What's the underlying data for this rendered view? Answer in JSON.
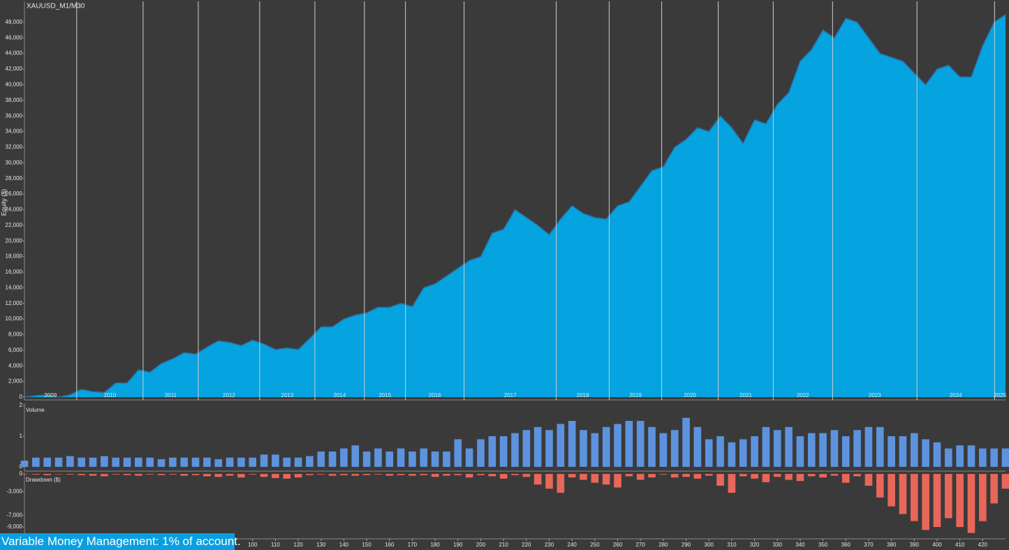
{
  "chart_data": [
    {
      "type": "area",
      "title": "XAUUSD_M1/M30",
      "y_label": "Equity ($)",
      "color": "#05a3e0",
      "line_color": "#2b6d9c",
      "x": [
        0,
        5,
        10,
        15,
        20,
        25,
        30,
        35,
        40,
        45,
        50,
        55,
        60,
        65,
        70,
        75,
        80,
        85,
        90,
        95,
        100,
        105,
        110,
        115,
        120,
        125,
        130,
        135,
        140,
        145,
        150,
        155,
        160,
        165,
        170,
        175,
        180,
        185,
        190,
        195,
        200,
        205,
        210,
        215,
        220,
        225,
        230,
        235,
        240,
        245,
        250,
        255,
        260,
        265,
        270,
        275,
        280,
        285,
        290,
        295,
        300,
        305,
        310,
        315,
        320,
        325,
        330,
        335,
        340,
        345,
        350,
        355,
        360,
        365,
        370,
        375,
        380,
        385,
        390,
        395,
        400,
        405,
        410,
        415,
        420,
        425,
        430
      ],
      "values": [
        0,
        200,
        300,
        0,
        300,
        1000,
        700,
        600,
        1800,
        1800,
        3500,
        3200,
        4300,
        4900,
        5700,
        5500,
        6400,
        7200,
        7000,
        6600,
        7300,
        6800,
        6100,
        6300,
        6100,
        7500,
        9000,
        9000,
        10000,
        10500,
        10800,
        11500,
        11500,
        12000,
        11600,
        14000,
        14500,
        15500,
        16500,
        17500,
        18000,
        21000,
        21500,
        24000,
        23000,
        22000,
        20800,
        22800,
        24500,
        23500,
        23000,
        22800,
        24500,
        25000,
        27000,
        29000,
        29500,
        32000,
        33000,
        34500,
        34000,
        36000,
        34500,
        32500,
        35500,
        35000,
        37500,
        39000,
        43000,
        44500,
        47000,
        46000,
        48500,
        48000,
        46000,
        44000,
        43500,
        43000,
        41500,
        40000,
        42000,
        42500,
        41000,
        41000,
        45000,
        48000,
        49000
      ],
      "xlim": [
        0,
        430
      ],
      "ylim": [
        -360,
        50670
      ],
      "yticks": [
        {
          "value": 0,
          "label": "0"
        },
        {
          "value": 2000,
          "label": "2,000"
        },
        {
          "value": 4000,
          "label": "4,000"
        },
        {
          "value": 6000,
          "label": "6,000"
        },
        {
          "value": 8000,
          "label": "8,000"
        },
        {
          "value": 10000,
          "label": "10,000"
        },
        {
          "value": 12000,
          "label": "12,000"
        },
        {
          "value": 14000,
          "label": "14,000"
        },
        {
          "value": 16000,
          "label": "16,000"
        },
        {
          "value": 18000,
          "label": "18,000"
        },
        {
          "value": 20000,
          "label": "20,000"
        },
        {
          "value": 22000,
          "label": "22,000"
        },
        {
          "value": 24000,
          "label": "24,000"
        },
        {
          "value": 26000,
          "label": "26,000"
        },
        {
          "value": 28000,
          "label": "28,000"
        },
        {
          "value": 30000,
          "label": "30,000"
        },
        {
          "value": 32000,
          "label": "32,000"
        },
        {
          "value": 34000,
          "label": "34,000"
        },
        {
          "value": 36000,
          "label": "36,000"
        },
        {
          "value": 38000,
          "label": "38,000"
        },
        {
          "value": 40000,
          "label": "40,000"
        },
        {
          "value": 42000,
          "label": "42,000"
        },
        {
          "value": 44000,
          "label": "44,000"
        },
        {
          "value": 46000,
          "label": "46,000"
        },
        {
          "value": 48000,
          "label": "48,000"
        }
      ],
      "year_boundaries": [
        22.9,
        52,
        76.2,
        103.1,
        127.3,
        149,
        167,
        192.7,
        233.1,
        256.3,
        279.3,
        304.1,
        328.2,
        354.2,
        391.2,
        425.2
      ],
      "years": [
        "2009",
        "2010",
        "2011",
        "2012",
        "2013",
        "2014",
        "2015",
        "2016",
        "2017",
        "2018",
        "2019",
        "2020",
        "2021",
        "2022",
        "2023",
        "2024",
        "2025"
      ]
    },
    {
      "type": "bar",
      "y_label": "Volume",
      "color": "#5d93de",
      "x": [
        0,
        5,
        10,
        15,
        20,
        25,
        30,
        35,
        40,
        45,
        50,
        55,
        60,
        65,
        70,
        75,
        80,
        85,
        90,
        95,
        100,
        105,
        110,
        115,
        120,
        125,
        130,
        135,
        140,
        145,
        150,
        155,
        160,
        165,
        170,
        175,
        180,
        185,
        190,
        195,
        200,
        205,
        210,
        215,
        220,
        225,
        230,
        235,
        240,
        245,
        250,
        255,
        260,
        265,
        270,
        275,
        280,
        285,
        290,
        295,
        300,
        305,
        310,
        315,
        320,
        325,
        330,
        335,
        340,
        345,
        350,
        355,
        360,
        365,
        370,
        375,
        380,
        385,
        390,
        395,
        400,
        405,
        410,
        415,
        420,
        425,
        430
      ],
      "values": [
        0.2,
        0.3,
        0.3,
        0.3,
        0.35,
        0.3,
        0.3,
        0.35,
        0.3,
        0.3,
        0.3,
        0.3,
        0.25,
        0.3,
        0.3,
        0.3,
        0.3,
        0.25,
        0.3,
        0.3,
        0.3,
        0.4,
        0.4,
        0.3,
        0.3,
        0.35,
        0.5,
        0.5,
        0.6,
        0.7,
        0.5,
        0.6,
        0.5,
        0.6,
        0.5,
        0.6,
        0.5,
        0.5,
        0.9,
        0.6,
        0.9,
        1.0,
        1.0,
        1.1,
        1.2,
        1.3,
        1.2,
        1.4,
        1.5,
        1.2,
        1.1,
        1.3,
        1.4,
        1.5,
        1.5,
        1.3,
        1.1,
        1.2,
        1.6,
        1.3,
        0.9,
        1.0,
        0.8,
        0.9,
        1.0,
        1.3,
        1.2,
        1.3,
        1.0,
        1.1,
        1.1,
        1.2,
        1.0,
        1.2,
        1.3,
        1.3,
        1.0,
        1.0,
        1.1,
        0.9,
        0.8,
        0.6,
        0.7,
        0.7,
        0.6,
        0.6,
        0.6
      ],
      "xlim": [
        0,
        430
      ],
      "ylim": [
        -0.14,
        2.07
      ],
      "yticks": [
        0,
        1,
        2
      ]
    },
    {
      "type": "bar",
      "y_label": "Drawdown ($)",
      "color": "#e8665a",
      "x": [
        0,
        5,
        10,
        15,
        20,
        25,
        30,
        35,
        40,
        45,
        50,
        55,
        60,
        65,
        70,
        75,
        80,
        85,
        90,
        95,
        100,
        105,
        110,
        115,
        120,
        125,
        130,
        135,
        140,
        145,
        150,
        155,
        160,
        165,
        170,
        175,
        180,
        185,
        190,
        195,
        200,
        205,
        210,
        215,
        220,
        225,
        230,
        235,
        240,
        245,
        250,
        255,
        260,
        265,
        270,
        275,
        280,
        285,
        290,
        295,
        300,
        305,
        310,
        315,
        320,
        325,
        330,
        335,
        340,
        345,
        350,
        355,
        360,
        365,
        370,
        375,
        380,
        385,
        390,
        395,
        400,
        405,
        410,
        415,
        420,
        425,
        430
      ],
      "values": [
        0,
        -100,
        -200,
        0,
        -100,
        -200,
        -300,
        -400,
        -100,
        -200,
        -300,
        -100,
        -200,
        -100,
        -300,
        -200,
        -400,
        -500,
        -300,
        -600,
        -100,
        -500,
        -700,
        -800,
        -600,
        -200,
        -100,
        -300,
        -200,
        -300,
        -200,
        -100,
        -300,
        -200,
        -300,
        -200,
        -500,
        -300,
        -200,
        -600,
        -200,
        -400,
        -800,
        -200,
        -500,
        -1800,
        -2500,
        -3200,
        -600,
        -1000,
        -1500,
        -1800,
        -2300,
        -400,
        -1000,
        -600,
        -100,
        -600,
        -500,
        -800,
        -300,
        -2000,
        -3200,
        -400,
        -800,
        -1400,
        -500,
        -1000,
        -1200,
        -400,
        -600,
        -300,
        -1500,
        -400,
        -2000,
        -4000,
        -5500,
        -6800,
        -8000,
        -9500,
        -9000,
        -7500,
        -9000,
        -10000,
        -8000,
        -5000,
        -2500
      ],
      "xlim": [
        0,
        430
      ],
      "ylim": [
        -11000,
        240
      ],
      "yticks": [
        {
          "value": 0,
          "label": "0"
        },
        {
          "value": -3000,
          "label": "-3,000"
        },
        {
          "value": -7000,
          "label": "-7,000"
        },
        {
          "value": -9000,
          "label": "-9,000"
        }
      ],
      "xticks": [
        100,
        110,
        120,
        130,
        140,
        150,
        160,
        170,
        180,
        190,
        200,
        210,
        220,
        230,
        240,
        250,
        260,
        270,
        280,
        290,
        300,
        310,
        320,
        330,
        340,
        350,
        360,
        370,
        380,
        390,
        400,
        410,
        420
      ],
      "note": "Variable Money Management: 1% of account."
    }
  ]
}
